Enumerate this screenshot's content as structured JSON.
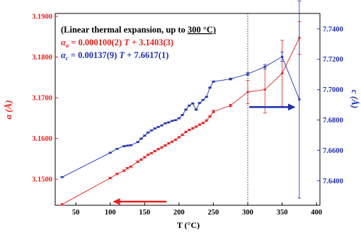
{
  "chart_data": {
    "type": "scatter",
    "xlabel": "T (°C)",
    "ylabel_left": "a (Å)",
    "ylabel_right": "c (Å)",
    "xlim": [
      20,
      405
    ],
    "xticks": [
      50,
      100,
      150,
      200,
      250,
      300,
      350,
      400
    ],
    "ylim_left": [
      3.1436,
      3.1907
    ],
    "yticks_left": [
      "3.1500",
      "3.1600",
      "3.1700",
      "3.1800",
      "3.1900"
    ],
    "ylim_right": [
      7.6238,
      7.7502
    ],
    "yticks_right": [
      "7.6400",
      "7.6600",
      "7.6800",
      "7.7000",
      "7.7200",
      "7.7400"
    ],
    "vline_x": 300,
    "annotation": {
      "line1_prefix": "(Linear thermal expansion, up to",
      "line1_emph": "300 °C)",
      "line2_sym": "α",
      "line2_sub": "a",
      "line2_text": " = 0.000100(2) ",
      "line2_var": "T",
      "line2_rest": " + 3.1403(3)",
      "line3_sym": "α",
      "line3_sub": "c",
      "line3_text": " = 0.00137(9) ",
      "line3_var": "T",
      "line3_rest": " + 7.6617(1)"
    },
    "series": [
      {
        "key": "a",
        "axis": "left",
        "color": "#e8201c",
        "x": [
          30,
          100,
          110,
          120,
          125,
          130,
          140,
          145,
          150,
          155,
          160,
          165,
          170,
          175,
          180,
          185,
          190,
          195,
          200,
          205,
          210,
          215,
          220,
          225,
          230,
          235,
          240,
          245,
          250,
          275,
          300,
          325,
          350,
          375
        ],
        "y": [
          3.1438,
          3.1503,
          3.1513,
          3.1521,
          3.1527,
          3.1531,
          3.1543,
          3.1548,
          3.1554,
          3.156,
          3.1564,
          3.1569,
          3.1574,
          3.1578,
          3.1583,
          3.1588,
          3.1592,
          3.1597,
          3.1603,
          3.1609,
          3.1616,
          3.1621,
          3.1625,
          3.1629,
          3.1634,
          3.1638,
          3.1644,
          3.1654,
          3.1666,
          3.1681,
          3.1714,
          3.172,
          3.176,
          3.1847
        ],
        "err": [
          0.0002,
          0.0002,
          0.0002,
          0.0002,
          0.0002,
          0.0002,
          0.0002,
          0.0002,
          0.0002,
          0.0002,
          0.0002,
          0.0002,
          0.0002,
          0.0002,
          0.0002,
          0.0002,
          0.0002,
          0.0002,
          0.0002,
          0.0002,
          0.0002,
          0.0002,
          0.0002,
          0.0002,
          0.0002,
          0.0002,
          0.0002,
          0.0002,
          0.0003,
          0.0003,
          0.0029,
          0.0057,
          0.0081,
          0.004
        ]
      },
      {
        "key": "c",
        "axis": "right",
        "color": "#1a2fb0",
        "x": [
          30,
          100,
          110,
          120,
          125,
          130,
          140,
          145,
          150,
          155,
          160,
          165,
          170,
          175,
          180,
          185,
          190,
          195,
          200,
          205,
          210,
          215,
          220,
          225,
          230,
          235,
          240,
          245,
          250,
          275,
          300,
          325,
          350,
          375
        ],
        "y": [
          7.6423,
          7.6584,
          7.661,
          7.6627,
          7.6631,
          7.6634,
          7.6654,
          7.6677,
          7.6697,
          7.6717,
          7.6731,
          7.6744,
          7.6754,
          7.6764,
          7.6778,
          7.6784,
          7.6794,
          7.6799,
          7.6811,
          7.6833,
          7.6868,
          7.6895,
          7.6909,
          7.6868,
          7.6912,
          7.6932,
          7.6952,
          7.7013,
          7.7053,
          7.707,
          7.7103,
          7.7151,
          7.7217,
          7.6935
        ],
        "err": [
          0.0003,
          0.0004,
          0.0004,
          0.0004,
          0.0004,
          0.0004,
          0.0004,
          0.0004,
          0.0004,
          0.0004,
          0.0004,
          0.0004,
          0.0004,
          0.0004,
          0.0004,
          0.0004,
          0.0004,
          0.0004,
          0.0004,
          0.0004,
          0.0004,
          0.0004,
          0.0004,
          0.0004,
          0.0004,
          0.0004,
          0.0004,
          0.0004,
          0.0004,
          0.0006,
          0.001,
          0.0015,
          0.003,
          0.065
        ]
      }
    ],
    "arrows": [
      {
        "name": "red-arrow-left",
        "color": "#e8201c",
        "from_x": 182,
        "to_x": 105,
        "y_left": 3.1445
      },
      {
        "name": "blue-arrow-right",
        "color": "#1a2fb0",
        "from_x": 302,
        "to_x": 368,
        "y_right": 7.6885
      }
    ]
  }
}
